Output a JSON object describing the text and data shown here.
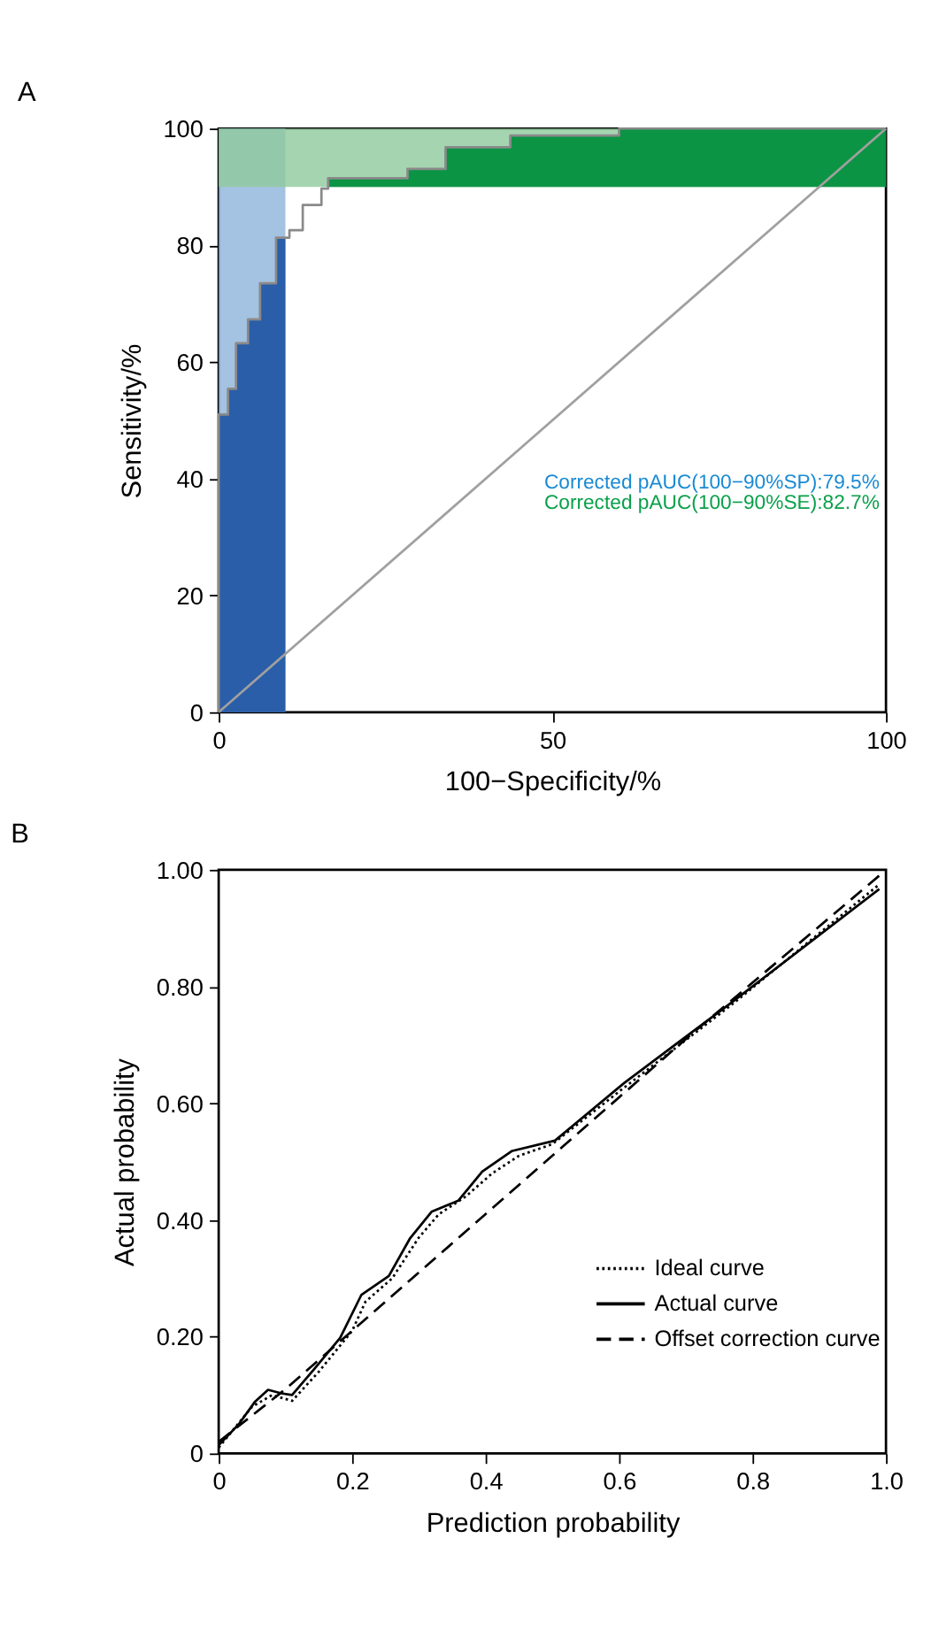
{
  "chart_data": [
    {
      "type": "step",
      "title": "A",
      "xlabel": "100−Specificity/%",
      "ylabel": "Sensitivity/%",
      "xlim": [
        0,
        100
      ],
      "xticks": [
        0,
        50,
        100
      ],
      "ylim": [
        0,
        100
      ],
      "yticks": [
        0,
        20,
        40,
        60,
        80,
        100
      ],
      "grid": false,
      "legend": false,
      "bands": [
        {
          "axis": "x",
          "from": 0,
          "to": 10,
          "color": "#8db3da"
        },
        {
          "axis": "y",
          "from": 90,
          "to": 100,
          "color": "#8fcb9c"
        }
      ],
      "series": [
        {
          "type": "area",
          "color": "#2a5ea8",
          "x": [
            0,
            1.4,
            2.6,
            4.4,
            6.2,
            8.6,
            10
          ],
          "values": [
            51,
            55.4,
            63.2,
            67.3,
            73.5,
            81.3,
            81.3
          ]
        },
        {
          "type": "area",
          "color": "#0b9444",
          "x": [
            16.4,
            28.3,
            34.0,
            43.7,
            60.0,
            100
          ],
          "values": [
            91.5,
            93.1,
            96.8,
            98.8,
            100,
            100
          ]
        },
        {
          "type": "line",
          "color": "#a0a0a0",
          "x": [
            0,
            100
          ],
          "values": [
            0,
            100
          ]
        },
        {
          "color": "#8a8a8a",
          "x": [
            0,
            0,
            1.4,
            2.6,
            4.4,
            6.2,
            8.6,
            10.6,
            12.6,
            15.4,
            16.4,
            28.3,
            34.0,
            43.7,
            60.0,
            100
          ],
          "values": [
            0,
            51,
            55.4,
            63.2,
            67.3,
            73.5,
            81.3,
            82.6,
            86.9,
            89.7,
            91.5,
            93.1,
            96.8,
            98.8,
            100,
            100
          ]
        }
      ],
      "annotations": [
        "Corrected pAUC(100−90%SP):79.5%",
        "Corrected pAUC(100−90%SE):82.7%"
      ]
    },
    {
      "type": "line",
      "title": "B",
      "xlabel": "Prediction probability",
      "ylabel": "Actual probability",
      "xlim": [
        0,
        1
      ],
      "xticks": [
        0,
        0.2,
        0.4,
        0.6,
        0.8,
        {
          "value": 1,
          "label": "1.0"
        }
      ],
      "ylim": [
        0,
        1
      ],
      "yticks": [
        0,
        {
          "value": 0.2,
          "label": "0.20"
        },
        {
          "value": 0.4,
          "label": "0.40"
        },
        {
          "value": 0.6,
          "label": "0.60"
        },
        {
          "value": 0.8,
          "label": "0.80"
        },
        {
          "value": 1,
          "label": "1.00"
        }
      ],
      "grid": false,
      "legend": "bottom right",
      "series": [
        {
          "name": "Ideal curve",
          "color": "#000000",
          "line_style": "dotted",
          "x": [
            0,
            0.05,
            0.08,
            0.11,
            0.15,
            0.2,
            0.22,
            0.26,
            0.3,
            0.33,
            0.37,
            0.41,
            0.45,
            0.5,
            0.6,
            0.77,
            0.99
          ],
          "values": [
            0.01,
            0.08,
            0.1,
            0.09,
            0.14,
            0.21,
            0.26,
            0.3,
            0.37,
            0.41,
            0.44,
            0.48,
            0.51,
            0.53,
            0.62,
            0.77,
            0.975
          ]
        },
        {
          "name": "Actual curve",
          "color": "#000000",
          "line_style": "solid",
          "x": [
            0,
            0.03,
            0.054,
            0.074,
            0.094,
            0.11,
            0.142,
            0.182,
            0.214,
            0.255,
            0.287,
            0.319,
            0.359,
            0.395,
            0.439,
            0.504,
            0.608,
            0.769,
            0.99
          ],
          "values": [
            0.014,
            0.05,
            0.088,
            0.109,
            0.103,
            0.1,
            0.143,
            0.198,
            0.272,
            0.304,
            0.369,
            0.414,
            0.433,
            0.483,
            0.518,
            0.536,
            0.635,
            0.773,
            0.967
          ]
        },
        {
          "name": "Offset correction curve",
          "color": "#000000",
          "line_style": "dashed",
          "x": [
            0,
            0.1,
            0.2,
            0.45,
            0.55,
            0.7,
            0.99
          ],
          "values": [
            0.02,
            0.11,
            0.21,
            0.46,
            0.56,
            0.71,
            0.99
          ]
        }
      ]
    }
  ]
}
